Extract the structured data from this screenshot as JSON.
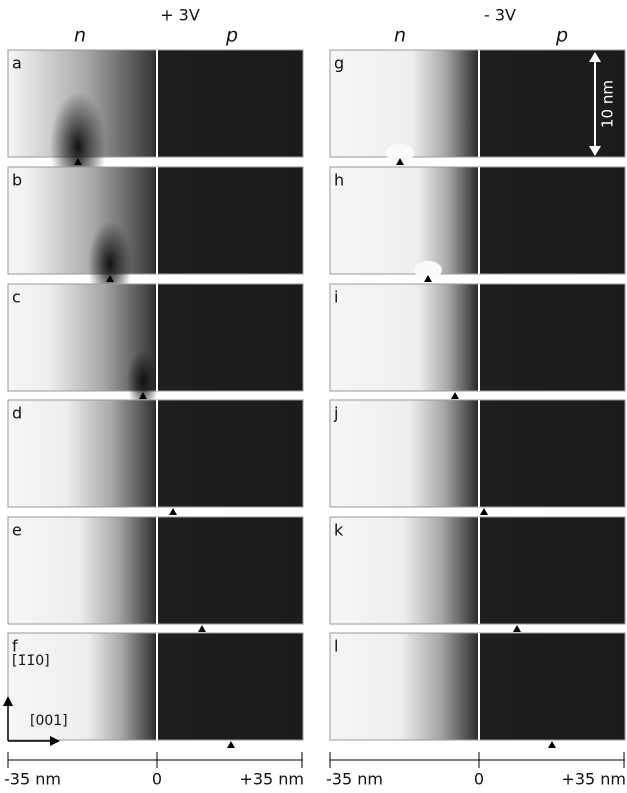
{
  "header": {
    "left_bias": "+ 3V",
    "right_bias": "- 3V",
    "left_n": "n",
    "left_p": "p",
    "right_n": "n",
    "right_p": "p"
  },
  "panels": {
    "left": [
      "a",
      "b",
      "c",
      "d",
      "e",
      "f"
    ],
    "right": [
      "g",
      "h",
      "i",
      "j",
      "k",
      "l"
    ]
  },
  "scale_bar": "10 nm",
  "axes": {
    "vertical": "[1̄1̄0]",
    "horizontal": "[001]"
  },
  "x_axis": {
    "left": [
      "-35 nm",
      "0",
      "+35 nm"
    ],
    "right": [
      "-35 nm",
      "0",
      "+35 nm"
    ]
  }
}
